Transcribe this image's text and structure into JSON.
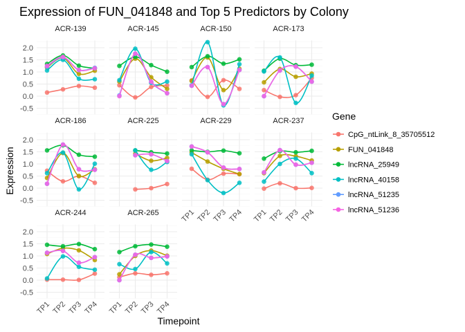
{
  "chart_data": {
    "type": "line",
    "title": "Expression of FUN_041848 and Top 5 Predictors by Colony",
    "xlabel": "Timepoint",
    "ylabel": "Expression",
    "x": [
      "TP1",
      "TP2",
      "TP3",
      "TP4"
    ],
    "ylim": [
      -0.5,
      2.0
    ],
    "yticks": [
      "-0.5",
      "0.0",
      "0.5",
      "1.0",
      "1.5",
      "2.0"
    ],
    "yticks_values": [
      -0.5,
      0,
      0.5,
      1.0,
      1.5,
      2.0
    ],
    "grid": true,
    "legend": {
      "title": "Gene",
      "placement": "right"
    },
    "genes": [
      {
        "name": "CpG_ntLink_8_35705512",
        "color": "#F8766D"
      },
      {
        "name": "FUN_041848",
        "color": "#B79F00"
      },
      {
        "name": "lncRNA_25949",
        "color": "#00BA38"
      },
      {
        "name": "lncRNA_40158",
        "color": "#00BFC4"
      },
      {
        "name": "lncRNA_51235",
        "color": "#619CFF"
      },
      {
        "name": "lncRNA_51236",
        "color": "#F564E3"
      }
    ],
    "panels": [
      {
        "colony": "ACR-139",
        "series": [
          [
            0.15,
            0.28,
            0.42,
            0.35
          ],
          [
            1.18,
            1.58,
            0.92,
            1.05
          ],
          [
            1.33,
            1.68,
            1.26,
            1.15
          ],
          [
            1.06,
            1.5,
            0.72,
            0.7
          ],
          [
            1.22,
            1.6,
            1.08,
            1.17
          ],
          [
            1.25,
            1.62,
            1.08,
            1.15
          ]
        ]
      },
      {
        "colony": "ACR-145",
        "series": [
          [
            0.45,
            -0.05,
            0.38,
            0.44
          ],
          [
            0.6,
            1.55,
            0.78,
            0.3
          ],
          [
            1.25,
            1.62,
            1.28,
            1.01
          ],
          [
            0.66,
            1.96,
            0.55,
            0.6
          ],
          [
            0.03,
            1.75,
            0.58,
            0.12
          ],
          [
            0.0,
            1.76,
            0.6,
            0.12
          ]
        ]
      },
      {
        "colony": "ACR-150",
        "series": [
          [
            0.65,
            -0.03,
            0.66,
            0.3
          ],
          [
            0.63,
            1.6,
            0.25,
            1.13
          ],
          [
            1.2,
            1.65,
            1.34,
            1.52
          ],
          [
            0.45,
            2.23,
            -0.38,
            1.32
          ],
          [
            0.43,
            1.2,
            -0.33,
            1.08
          ],
          [
            0.43,
            1.2,
            -0.33,
            1.08
          ]
        ]
      },
      {
        "colony": "ACR-173",
        "series": [
          [
            0.25,
            -0.03,
            0.04,
            0.75
          ],
          [
            0.57,
            1.12,
            0.8,
            0.93
          ],
          [
            1.05,
            1.55,
            1.28,
            1.3
          ],
          [
            1.02,
            1.6,
            -0.28,
            0.85
          ],
          [
            0.0,
            1.06,
            1.22,
            0.6
          ],
          [
            0.0,
            1.06,
            1.22,
            0.6
          ]
        ]
      },
      {
        "colony": "ACR-186",
        "series": [
          [
            0.72,
            0.28,
            0.5,
            0.22
          ],
          [
            0.42,
            1.45,
            0.5,
            0.78
          ],
          [
            1.56,
            1.77,
            1.38,
            1.3
          ],
          [
            0.62,
            1.47,
            -0.05,
            1.01
          ],
          [
            0.18,
            1.8,
            0.78,
            0.76
          ],
          [
            0.18,
            1.8,
            0.78,
            0.76
          ]
        ]
      },
      {
        "colony": "ACR-225",
        "series": [
          [
            null,
            -0.05,
            0.0,
            0.17
          ],
          [
            null,
            1.42,
            1.13,
            1.25
          ],
          [
            null,
            1.56,
            1.48,
            1.43
          ],
          [
            null,
            1.56,
            0.76,
            1.08
          ],
          [
            null,
            1.36,
            1.4,
            1.12
          ],
          [
            null,
            1.36,
            1.4,
            1.12
          ]
        ]
      },
      {
        "colony": "ACR-229",
        "series": [
          [
            0.8,
            0.35,
            0.6,
            0.58
          ],
          [
            1.47,
            1.1,
            0.8,
            0.58
          ],
          [
            1.56,
            1.5,
            1.55,
            1.44
          ],
          [
            1.4,
            0.33,
            -0.2,
            0.22
          ],
          [
            1.72,
            1.48,
            0.85,
            0.79
          ],
          [
            1.72,
            1.48,
            0.85,
            0.79
          ]
        ]
      },
      {
        "colony": "ACR-237",
        "series": [
          [
            -0.02,
            0.2,
            0.0,
            0.01
          ],
          [
            0.62,
            1.33,
            1.32,
            1.14
          ],
          [
            1.22,
            1.53,
            1.48,
            1.54
          ],
          [
            0.27,
            1.0,
            1.22,
            0.62
          ],
          [
            0.65,
            1.57,
            0.97,
            1.05
          ],
          [
            0.65,
            1.57,
            0.97,
            1.05
          ]
        ]
      },
      {
        "colony": "ACR-244",
        "series": [
          [
            0.02,
            0.02,
            0.01,
            0.27
          ],
          [
            1.08,
            1.32,
            1.23,
            0.83
          ],
          [
            1.46,
            1.4,
            1.49,
            1.28
          ],
          [
            0.07,
            0.98,
            0.55,
            0.43
          ],
          [
            1.13,
            1.21,
            0.72,
            0.95
          ],
          [
            1.13,
            1.21,
            0.72,
            0.95
          ]
        ]
      },
      {
        "colony": "ACR-265",
        "series": [
          [
            0.12,
            0.28,
            0.22,
            0.28
          ],
          [
            0.24,
            1.0,
            1.22,
            1.01
          ],
          [
            1.16,
            1.4,
            1.47,
            1.38
          ],
          [
            0.66,
            0.46,
            1.16,
            0.69
          ],
          [
            0.0,
            1.05,
            0.92,
            0.98
          ],
          [
            0.0,
            1.05,
            0.92,
            0.98
          ]
        ]
      }
    ]
  }
}
